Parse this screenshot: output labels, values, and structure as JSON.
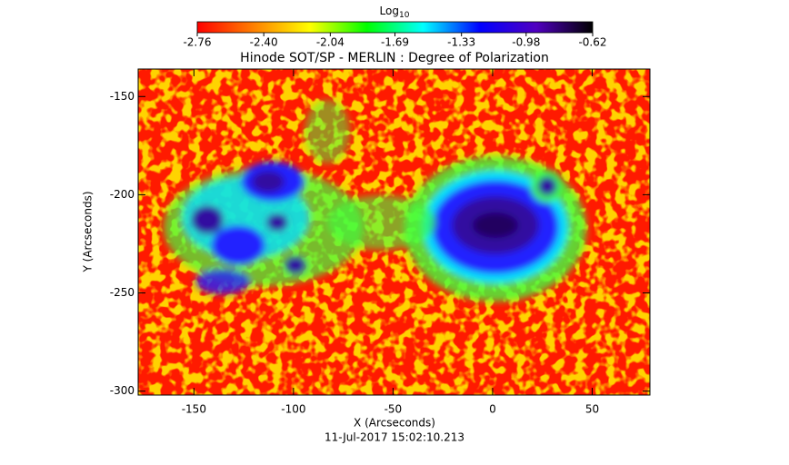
{
  "chart_data": {
    "type": "image",
    "title": "Hinode SOT/SP - MERLIN : Degree of Polarization",
    "xlabel": "X (Arcseconds)",
    "ylabel": "Y (Arcseconds)",
    "timestamp": "11-Jul-2017 15:02:10.213",
    "colorbar": {
      "label": "Log",
      "label_subscript": "10",
      "lim": [
        -2.76,
        -0.62
      ],
      "ticks": [
        -2.76,
        {
          "value": -2.4,
          "label": "-2.40"
        },
        -2.04,
        -1.69,
        -1.33,
        -0.98,
        -0.62
      ],
      "colors": [
        "#ff0000",
        "#ff8000",
        "#ffff00",
        "#00ff00",
        "#00ffff",
        "#0000ff",
        "#5000c0",
        "#000000"
      ]
    },
    "xlim": [
      -178,
      79
    ],
    "xticks": [
      -150,
      -100,
      -50,
      0,
      50
    ],
    "ylim": [
      -302,
      -136
    ],
    "yticks": [
      -150,
      -200,
      -250,
      -300
    ]
  }
}
